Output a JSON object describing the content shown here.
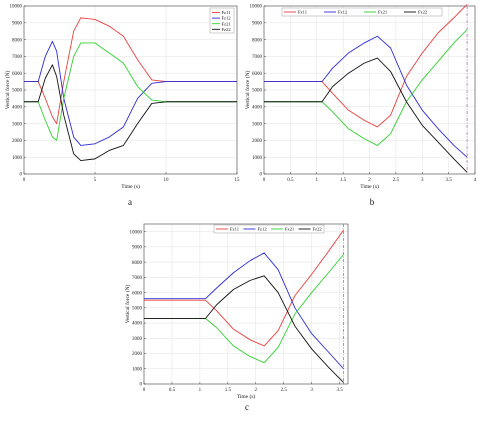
{
  "colors": {
    "Fz11": "#e8403c",
    "Fz12": "#2b2bd6",
    "Fz21": "#2fd12f",
    "Fz22": "#111111",
    "vline": "#b34fb3",
    "grid": "#e0e0e0"
  },
  "chart_data": [
    {
      "type": "line",
      "panel_label": "a",
      "xlabel": "Time (s)",
      "ylabel": "Vertical force (N)",
      "xlim": [
        0,
        15
      ],
      "ylim": [
        0,
        10000
      ],
      "xticks": [
        0,
        5,
        10,
        15
      ],
      "yticks": [
        0,
        1000,
        2000,
        3000,
        4000,
        5000,
        6000,
        7000,
        8000,
        9000,
        10000
      ],
      "grid": true,
      "legend": "top-right",
      "series": [
        {
          "name": "Fz11",
          "color": "#e8403c",
          "x": [
            0,
            1,
            1.5,
            2,
            2.3,
            2.8,
            3.5,
            4,
            5,
            6,
            7,
            8,
            9,
            10,
            15
          ],
          "y": [
            5500,
            5500,
            4500,
            3400,
            3000,
            5500,
            8500,
            9300,
            9200,
            8800,
            8200,
            6800,
            5600,
            5500,
            5500
          ]
        },
        {
          "name": "Fz12",
          "color": "#2b2bd6",
          "x": [
            0,
            1,
            1.5,
            2,
            2.3,
            2.8,
            3.5,
            4,
            5,
            6,
            7,
            8,
            9,
            10,
            15
          ],
          "y": [
            5500,
            5500,
            7000,
            7900,
            7300,
            4500,
            2200,
            1700,
            1800,
            2200,
            2800,
            4500,
            5400,
            5500,
            5500
          ]
        },
        {
          "name": "Fz21",
          "color": "#2fd12f",
          "x": [
            0,
            1,
            1.5,
            2,
            2.3,
            2.8,
            3.5,
            4,
            5,
            6,
            7,
            8,
            9,
            10,
            15
          ],
          "y": [
            4300,
            4300,
            3200,
            2200,
            2000,
            4500,
            7000,
            7800,
            7800,
            7200,
            6600,
            5200,
            4400,
            4300,
            4300
          ]
        },
        {
          "name": "Fz22",
          "color": "#111111",
          "x": [
            0,
            1,
            1.5,
            2,
            2.3,
            2.8,
            3.5,
            4,
            5,
            6,
            7,
            8,
            9,
            10,
            15
          ],
          "y": [
            4300,
            4300,
            5700,
            6500,
            5800,
            3500,
            1200,
            800,
            900,
            1400,
            1700,
            3000,
            4200,
            4300,
            4300
          ]
        }
      ]
    },
    {
      "type": "line",
      "panel_label": "b",
      "xlabel": "Time (s)",
      "ylabel": "Vertical force (N)",
      "xlim": [
        0,
        4
      ],
      "ylim": [
        0,
        10000
      ],
      "xticks": [
        0,
        0.5,
        1,
        1.5,
        2,
        2.5,
        3,
        3.5,
        4
      ],
      "yticks": [
        0,
        1000,
        2000,
        3000,
        4000,
        5000,
        6000,
        7000,
        8000,
        9000,
        10000
      ],
      "grid": true,
      "legend": "top",
      "vline_x": 3.85,
      "series": [
        {
          "name": "Fz11",
          "color": "#e8403c",
          "x": [
            0,
            1.1,
            1.3,
            1.6,
            1.9,
            2.15,
            2.4,
            2.7,
            3,
            3.3,
            3.6,
            3.85
          ],
          "y": [
            5500,
            5500,
            4800,
            3800,
            3200,
            2800,
            3500,
            5800,
            7200,
            8400,
            9300,
            10100
          ]
        },
        {
          "name": "Fz12",
          "color": "#2b2bd6",
          "x": [
            0,
            1.1,
            1.3,
            1.6,
            1.9,
            2.15,
            2.4,
            2.7,
            3,
            3.3,
            3.6,
            3.85
          ],
          "y": [
            5500,
            5500,
            6300,
            7200,
            7800,
            8200,
            7500,
            5300,
            3800,
            2700,
            1700,
            1000
          ]
        },
        {
          "name": "Fz21",
          "color": "#2fd12f",
          "x": [
            0,
            1.1,
            1.3,
            1.6,
            1.9,
            2.15,
            2.4,
            2.7,
            3,
            3.3,
            3.6,
            3.85
          ],
          "y": [
            4300,
            4300,
            3700,
            2700,
            2100,
            1700,
            2400,
            4300,
            5600,
            6700,
            7800,
            8600
          ]
        },
        {
          "name": "Fz22",
          "color": "#111111",
          "x": [
            0,
            1.1,
            1.3,
            1.6,
            1.9,
            2.15,
            2.4,
            2.7,
            3,
            3.3,
            3.6,
            3.85
          ],
          "y": [
            4300,
            4300,
            5200,
            6000,
            6600,
            6900,
            6100,
            4300,
            2900,
            1900,
            900,
            100
          ]
        }
      ]
    },
    {
      "type": "line",
      "panel_label": "c",
      "xlabel": "Time (s)",
      "ylabel": "Vertical force (N)",
      "xlim": [
        0,
        3.65
      ],
      "ylim": [
        0,
        10500
      ],
      "xticks": [
        0,
        0.5,
        1,
        1.5,
        2,
        2.5,
        3,
        3.5
      ],
      "yticks": [
        0,
        1000,
        2000,
        3000,
        4000,
        5000,
        6000,
        7000,
        8000,
        9000,
        10000
      ],
      "grid": true,
      "legend": "top",
      "vline_x": 3.57,
      "series": [
        {
          "name": "Fz11",
          "color": "#e8403c",
          "x": [
            0,
            1.1,
            1.3,
            1.6,
            1.9,
            2.15,
            2.4,
            2.7,
            3,
            3.3,
            3.57
          ],
          "y": [
            5500,
            5500,
            4800,
            3600,
            2900,
            2500,
            3500,
            5800,
            7200,
            8700,
            10100
          ]
        },
        {
          "name": "Fz12",
          "color": "#2b2bd6",
          "x": [
            0,
            1.1,
            1.3,
            1.6,
            1.9,
            2.15,
            2.4,
            2.7,
            3,
            3.3,
            3.57
          ],
          "y": [
            5600,
            5600,
            6300,
            7300,
            8100,
            8600,
            7500,
            5000,
            3300,
            2100,
            1000
          ]
        },
        {
          "name": "Fz21",
          "color": "#2fd12f",
          "x": [
            0,
            1.1,
            1.3,
            1.6,
            1.9,
            2.15,
            2.4,
            2.7,
            3,
            3.3,
            3.57
          ],
          "y": [
            4300,
            4300,
            3700,
            2500,
            1800,
            1400,
            2400,
            4600,
            6000,
            7300,
            8500
          ]
        },
        {
          "name": "Fz22",
          "color": "#111111",
          "x": [
            0,
            1.1,
            1.3,
            1.6,
            1.9,
            2.15,
            2.4,
            2.7,
            3,
            3.3,
            3.57
          ],
          "y": [
            4300,
            4300,
            5200,
            6200,
            6800,
            7100,
            6000,
            3800,
            2300,
            1100,
            100
          ]
        }
      ]
    }
  ]
}
